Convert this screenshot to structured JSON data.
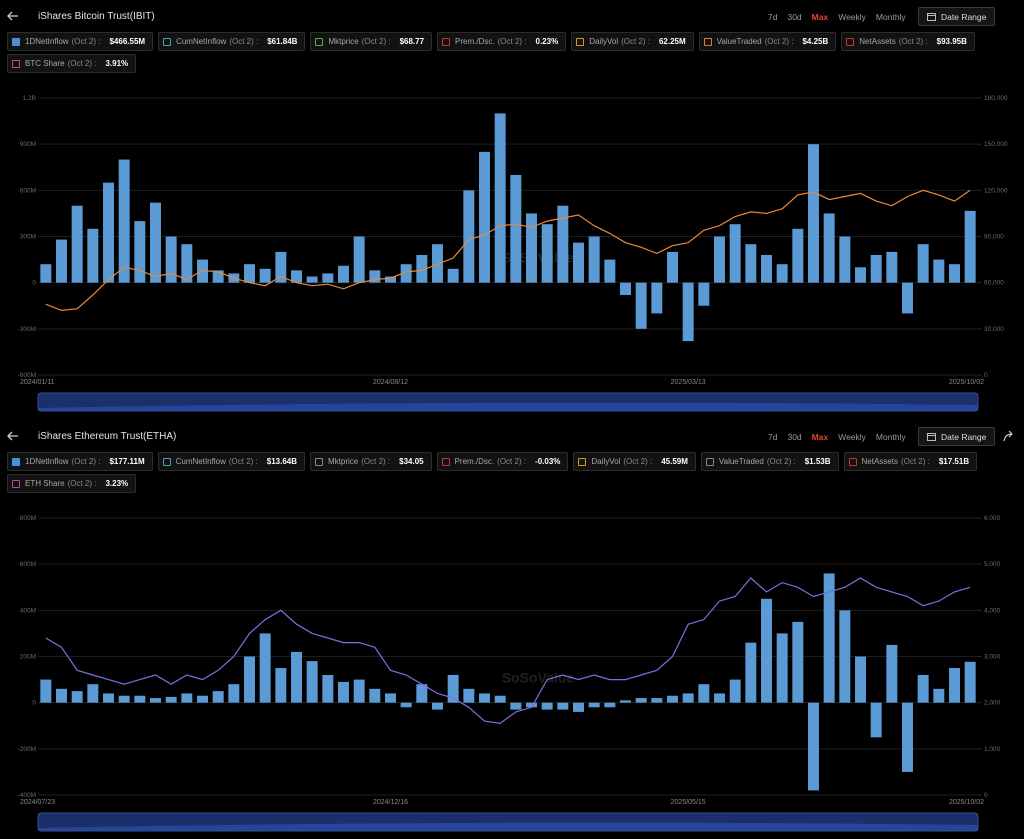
{
  "panels": [
    {
      "header": {
        "title": "iShares Bitcoin Trust(IBIT)",
        "ranges": [
          "7d",
          "30d",
          "Max",
          "Weekly",
          "Monthly"
        ],
        "active_range": 2,
        "date_range": "Date Range"
      },
      "metrics": [
        {
          "label": "1DNetInflow",
          "date": "(Oct 2) :",
          "value": "$466.55M",
          "checked": true,
          "color": "#4a90d9"
        },
        {
          "label": "CumNetInflow",
          "date": "(Oct 2) :",
          "value": "$61.84B",
          "checked": false,
          "color": "#3aa8a8"
        },
        {
          "label": "Mktprice",
          "date": "(Oct 2) :",
          "value": "$68.77",
          "checked": false,
          "color": "#4caf50"
        },
        {
          "label": "Prem./Dsc.",
          "date": "(Oct 2) :",
          "value": "0.23%",
          "checked": false,
          "color": "#c0392b"
        },
        {
          "label": "DailyVol",
          "date": "(Oct 2) :",
          "value": "62.25M",
          "checked": false,
          "color": "#d4a017"
        },
        {
          "label": "ValueTraded",
          "date": "(Oct 2) :",
          "value": "$4.25B",
          "checked": false,
          "color": "#e07b39"
        },
        {
          "label": "NetAssets",
          "date": "(Oct 2) :",
          "value": "$93.95B",
          "checked": false,
          "color": "#c0392b"
        },
        {
          "label": "BTC Share",
          "date": "(Oct 2) :",
          "value": "3.91%",
          "checked": false,
          "color": "#b0509a"
        }
      ],
      "watermark": "SoSoValue"
    },
    {
      "header": {
        "title": "iShares Ethereum Trust(ETHA)",
        "ranges": [
          "7d",
          "30d",
          "Max",
          "Weekly",
          "Monthly"
        ],
        "active_range": 2,
        "date_range": "Date Range"
      },
      "metrics": [
        {
          "label": "1DNetInflow",
          "date": "(Oct 2) :",
          "value": "$177.11M",
          "checked": true,
          "color": "#4a90d9"
        },
        {
          "label": "CumNetInflow",
          "date": "(Oct 2) :",
          "value": "$13.64B",
          "checked": false,
          "color": "#3aa8a8"
        },
        {
          "label": "Mktprice",
          "date": "(Oct 2) :",
          "value": "$34.05",
          "checked": false,
          "color": "#888888"
        },
        {
          "label": "Prem./Dsc.",
          "date": "(Oct 2) :",
          "value": "-0.03%",
          "checked": false,
          "color": "#c0392b"
        },
        {
          "label": "DailyVol",
          "date": "(Oct 2) :",
          "value": "45.59M",
          "checked": false,
          "color": "#d4a017"
        },
        {
          "label": "ValueTraded",
          "date": "(Oct 2) :",
          "value": "$1.53B",
          "checked": false,
          "color": "#888888"
        },
        {
          "label": "NetAssets",
          "date": "(Oct 2) :",
          "value": "$17.51B",
          "checked": false,
          "color": "#c0392b"
        },
        {
          "label": "ETH Share",
          "date": "(Oct 2) :",
          "value": "3.23%",
          "checked": false,
          "color": "#b0509a"
        }
      ],
      "watermark": "SoSoValue"
    }
  ],
  "chart_data": [
    {
      "type": "bar-line",
      "categories": [
        "2024/01/11",
        null,
        null,
        null,
        null,
        null,
        null,
        null,
        null,
        null,
        null,
        null,
        null,
        null,
        null,
        null,
        null,
        null,
        null,
        null,
        null,
        null,
        "2024/08/12",
        null,
        null,
        null,
        null,
        null,
        null,
        null,
        null,
        null,
        null,
        null,
        null,
        null,
        null,
        null,
        null,
        null,
        null,
        "2025/03/13",
        null,
        null,
        null,
        null,
        null,
        null,
        null,
        null,
        null,
        null,
        null,
        null,
        null,
        null,
        null,
        null,
        null,
        "2025/10/02"
      ],
      "series": [
        {
          "name": "1DNetInflow",
          "color": "#5b9bd5",
          "values": [
            120,
            280,
            500,
            350,
            650,
            800,
            400,
            520,
            300,
            250,
            150,
            80,
            60,
            120,
            90,
            200,
            80,
            40,
            60,
            110,
            300,
            80,
            40,
            120,
            180,
            250,
            90,
            600,
            850,
            1100,
            700,
            450,
            380,
            500,
            260,
            300,
            150,
            -80,
            -300,
            -200,
            200,
            -380,
            -150,
            300,
            380,
            250,
            180,
            120,
            350,
            900,
            450,
            300,
            100,
            180,
            200,
            -200,
            250,
            150,
            120,
            466.55
          ]
        },
        {
          "type": "line",
          "axis": "y2",
          "color": "#e8883a",
          "values": [
            46000,
            42000,
            43000,
            52000,
            62000,
            70000,
            68000,
            64000,
            66000,
            62000,
            68000,
            67000,
            63000,
            60000,
            58000,
            64000,
            60000,
            58000,
            59000,
            56000,
            60000,
            62000,
            63000,
            67000,
            68000,
            72000,
            76000,
            88000,
            91000,
            97000,
            98000,
            96000,
            100000,
            102000,
            104000,
            97000,
            92000,
            86000,
            83000,
            79000,
            84000,
            86000,
            94000,
            97000,
            103000,
            106000,
            105000,
            108000,
            117000,
            119000,
            114000,
            116000,
            118000,
            113000,
            110000,
            116000,
            120000,
            117000,
            113000,
            120000
          ]
        }
      ],
      "ylim": [
        -600,
        1200
      ],
      "yticks": [
        {
          "value": -600,
          "label": "-600M"
        },
        {
          "value": -300,
          "label": "-300M"
        },
        0,
        {
          "value": 300,
          "label": "300M"
        },
        {
          "value": 600,
          "label": "600M"
        },
        {
          "value": 900,
          "label": "900M"
        },
        {
          "value": 1200,
          "label": "1.2B"
        }
      ],
      "y2lim": [
        0,
        180000
      ],
      "y2ticks": [
        0,
        {
          "value": 30000,
          "label": "30,000"
        },
        {
          "value": 60000,
          "label": "60,000"
        },
        {
          "value": 90000,
          "label": "90,000"
        },
        {
          "value": 120000,
          "label": "120,000"
        },
        {
          "value": 150000,
          "label": "150,000"
        },
        {
          "value": 180000,
          "label": "180,000"
        }
      ],
      "grid": true
    },
    {
      "type": "bar-line",
      "categories": [
        "2024/07/23",
        null,
        null,
        null,
        null,
        null,
        null,
        null,
        null,
        null,
        null,
        null,
        null,
        null,
        null,
        null,
        null,
        null,
        null,
        null,
        null,
        null,
        "2024/12/16",
        null,
        null,
        null,
        null,
        null,
        null,
        null,
        null,
        null,
        null,
        null,
        null,
        null,
        null,
        null,
        null,
        null,
        null,
        "2025/05/15",
        null,
        null,
        null,
        null,
        null,
        null,
        null,
        null,
        null,
        null,
        null,
        null,
        null,
        null,
        null,
        null,
        null,
        "2025/10/02"
      ],
      "series": [
        {
          "name": "1DNetInflow",
          "color": "#5b9bd5",
          "values": [
            100,
            60,
            50,
            80,
            40,
            30,
            30,
            20,
            25,
            40,
            30,
            50,
            80,
            200,
            300,
            150,
            220,
            180,
            120,
            90,
            100,
            60,
            40,
            -20,
            80,
            -30,
            120,
            60,
            40,
            30,
            -30,
            -20,
            -30,
            -30,
            -40,
            -20,
            -20,
            10,
            20,
            20,
            30,
            40,
            80,
            40,
            100,
            260,
            450,
            300,
            350,
            -380,
            560,
            400,
            200,
            -150,
            250,
            -300,
            120,
            60,
            150,
            177.11
          ]
        },
        {
          "type": "line",
          "axis": "y2",
          "color": "#7b6fe0",
          "values": [
            3400,
            3200,
            2700,
            2600,
            2500,
            2400,
            2500,
            2600,
            2400,
            2600,
            2500,
            2700,
            3000,
            3500,
            3800,
            4000,
            3700,
            3500,
            3400,
            3300,
            3300,
            3200,
            2700,
            2600,
            2400,
            2200,
            2100,
            1900,
            1600,
            1550,
            1800,
            1900,
            2500,
            2600,
            2500,
            2600,
            2500,
            2500,
            2600,
            2700,
            3000,
            3700,
            3800,
            4200,
            4300,
            4700,
            4400,
            4600,
            4500,
            4300,
            4400,
            4500,
            4700,
            4500,
            4400,
            4300,
            4100,
            4200,
            4400,
            4500
          ]
        }
      ],
      "ylim": [
        -400,
        800
      ],
      "yticks": [
        {
          "value": -400,
          "label": "-400M"
        },
        {
          "value": -200,
          "label": "-200M"
        },
        0,
        {
          "value": 200,
          "label": "200M"
        },
        {
          "value": 400,
          "label": "400M"
        },
        {
          "value": 600,
          "label": "600M"
        },
        {
          "value": 800,
          "label": "800M"
        }
      ],
      "y2lim": [
        0,
        6000
      ],
      "y2ticks": [
        0,
        {
          "value": 1000,
          "label": "1,000"
        },
        {
          "value": 2000,
          "label": "2,000"
        },
        {
          "value": 3000,
          "label": "3,000"
        },
        {
          "value": 4000,
          "label": "4,000"
        },
        {
          "value": 5000,
          "label": "5,000"
        },
        {
          "value": 6000,
          "label": "6,000"
        }
      ],
      "grid": true
    }
  ]
}
